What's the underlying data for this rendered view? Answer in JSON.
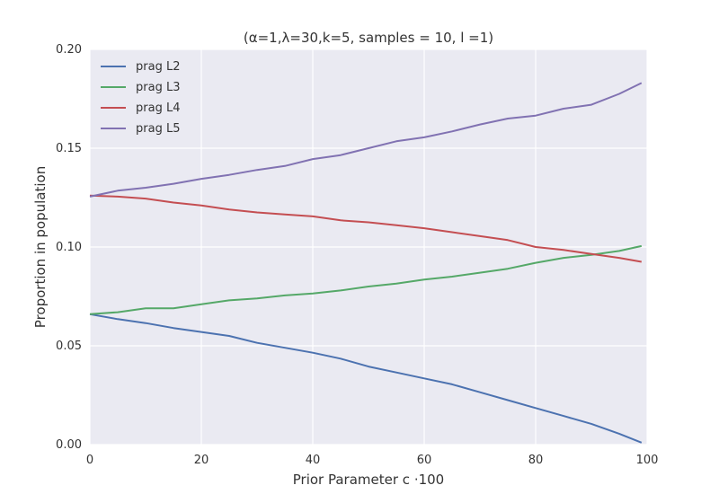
{
  "chart_data": {
    "type": "line",
    "title": "(α=1,λ=30,k=5, samples = 10, l =1)",
    "xlabel": "Prior Parameter c ·100",
    "ylabel": "Proportion in population",
    "xlim": [
      0,
      100
    ],
    "ylim": [
      0.0,
      0.2
    ],
    "xticks": [
      0,
      20,
      40,
      60,
      80,
      100
    ],
    "yticks": [
      0.0,
      0.05,
      0.1,
      0.15,
      0.2
    ],
    "xtick_labels": [
      "0",
      "20",
      "40",
      "60",
      "80",
      "100"
    ],
    "ytick_labels": [
      "0.00",
      "0.05",
      "0.10",
      "0.15",
      "0.20"
    ],
    "grid": true,
    "legend_position": "top-left",
    "x": [
      0,
      5,
      10,
      15,
      20,
      25,
      30,
      35,
      40,
      45,
      50,
      55,
      60,
      65,
      70,
      75,
      80,
      85,
      90,
      95,
      99
    ],
    "series": [
      {
        "name": "prag L2",
        "color": "#4c72b0",
        "values": [
          0.066,
          0.0635,
          0.0615,
          0.059,
          0.057,
          0.055,
          0.0515,
          0.049,
          0.0465,
          0.0435,
          0.0395,
          0.0365,
          0.0335,
          0.0305,
          0.0265,
          0.0225,
          0.0185,
          0.0145,
          0.0105,
          0.0055,
          0.001
        ]
      },
      {
        "name": "prag L3",
        "color": "#55a868",
        "values": [
          0.066,
          0.067,
          0.069,
          0.069,
          0.071,
          0.073,
          0.074,
          0.0755,
          0.0765,
          0.078,
          0.08,
          0.0815,
          0.0835,
          0.085,
          0.087,
          0.089,
          0.092,
          0.0945,
          0.096,
          0.098,
          0.1005
        ]
      },
      {
        "name": "prag L4",
        "color": "#c44e52",
        "values": [
          0.126,
          0.1255,
          0.1245,
          0.1225,
          0.121,
          0.119,
          0.1175,
          0.1165,
          0.1155,
          0.1135,
          0.1125,
          0.111,
          0.1095,
          0.1075,
          0.1055,
          0.1035,
          0.1,
          0.0985,
          0.0965,
          0.0945,
          0.0925
        ]
      },
      {
        "name": "prag L5",
        "color": "#8172b2",
        "values": [
          0.1255,
          0.1285,
          0.13,
          0.132,
          0.1345,
          0.1365,
          0.139,
          0.141,
          0.1445,
          0.1465,
          0.15,
          0.1535,
          0.1555,
          0.1585,
          0.162,
          0.165,
          0.1665,
          0.17,
          0.172,
          0.1775,
          0.183
        ]
      }
    ]
  }
}
